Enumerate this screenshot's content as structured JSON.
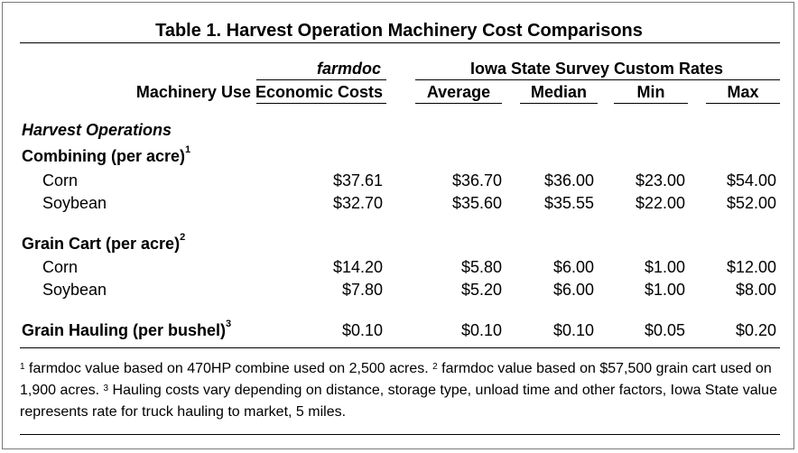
{
  "title": "Table 1. Harvest Operation Machinery Cost Comparisons",
  "header": {
    "farmdoc": "farmdoc",
    "survey_group": "Iowa State Survey Custom Rates",
    "machinery_col": "Machinery Use Economic Costs",
    "columns": [
      "Average",
      "Median",
      "Min",
      "Max"
    ]
  },
  "sections": {
    "harvest_ops": "Harvest Operations",
    "combining": {
      "label": "Combining (per acre)",
      "note": "1",
      "rows": [
        {
          "label": "Corn",
          "farmdoc": "$37.61",
          "average": "$36.70",
          "median": "$36.00",
          "min": "$23.00",
          "max": "$54.00"
        },
        {
          "label": "Soybean",
          "farmdoc": "$32.70",
          "average": "$35.60",
          "median": "$35.55",
          "min": "$22.00",
          "max": "$52.00"
        }
      ]
    },
    "grain_cart": {
      "label": "Grain Cart (per acre)",
      "note": "2",
      "rows": [
        {
          "label": "Corn",
          "farmdoc": "$14.20",
          "average": "$5.80",
          "median": "$6.00",
          "min": "$1.00",
          "max": "$12.00"
        },
        {
          "label": "Soybean",
          "farmdoc": "$7.80",
          "average": "$5.20",
          "median": "$6.00",
          "min": "$1.00",
          "max": "$8.00"
        }
      ]
    },
    "grain_hauling": {
      "label": "Grain Hauling (per bushel)",
      "note": "3",
      "farmdoc": "$0.10",
      "average": "$0.10",
      "median": "$0.10",
      "min": "$0.05",
      "max": "$0.20"
    }
  },
  "footnotes": {
    "n1_mark": "1",
    "n1": "farmdoc value based on 470HP combine used on 2,500 acres.",
    "n2_mark": "2",
    "n2": "farmdoc value based on $57,500 grain cart used on 1,900 acres.",
    "n3_mark": "3",
    "n3": "Hauling costs vary depending on distance, storage type, unload time and other factors, Iowa State value represents rate for truck hauling to market, 5 miles."
  }
}
